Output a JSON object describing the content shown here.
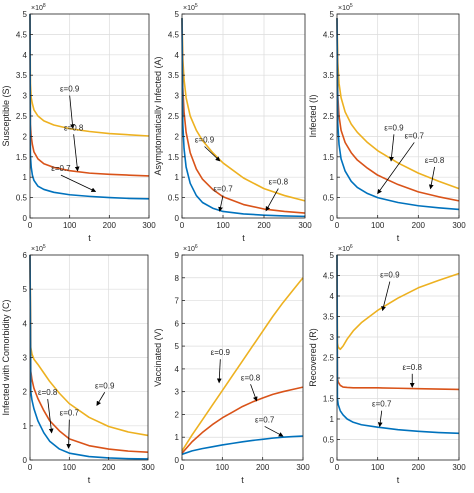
{
  "chart_data": [
    {
      "type": "line",
      "ylabel": "Susceptible (S)",
      "xlabel": "t",
      "exponent": "8",
      "xlim": [
        0,
        300
      ],
      "ylim": [
        0,
        5
      ],
      "xticks": [
        0,
        100,
        200,
        300
      ],
      "yticks": [
        0,
        0.5,
        1,
        1.5,
        2,
        2.5,
        3,
        3.5,
        4,
        4.5,
        5
      ],
      "grid": true,
      "series": [
        {
          "name": "ε=0.9",
          "color": "#edb120",
          "x": [
            0,
            1,
            3,
            6,
            10,
            20,
            35,
            60,
            100,
            150,
            200,
            250,
            300
          ],
          "y": [
            5.0,
            3.3,
            2.95,
            2.8,
            2.65,
            2.5,
            2.38,
            2.28,
            2.19,
            2.12,
            2.07,
            2.04,
            2.01
          ]
        },
        {
          "name": "ε=0.8",
          "color": "#d95319",
          "x": [
            0,
            1,
            3,
            6,
            10,
            20,
            35,
            60,
            100,
            150,
            200,
            250,
            300
          ],
          "y": [
            5.0,
            2.3,
            2.0,
            1.8,
            1.62,
            1.45,
            1.33,
            1.24,
            1.16,
            1.1,
            1.07,
            1.05,
            1.03
          ]
        },
        {
          "name": "ε=0.7",
          "color": "#0072bd",
          "x": [
            0,
            1,
            3,
            6,
            10,
            20,
            35,
            60,
            100,
            150,
            200,
            250,
            300
          ],
          "y": [
            5.0,
            1.55,
            1.25,
            1.05,
            0.92,
            0.78,
            0.7,
            0.63,
            0.57,
            0.53,
            0.5,
            0.48,
            0.47
          ]
        }
      ],
      "annotations": [
        {
          "text": "ε=0.9",
          "series": 0,
          "x": 100,
          "y": 3.1,
          "tx": 108,
          "ty": 2.2
        },
        {
          "text": "ε=0.8",
          "series": 1,
          "x": 110,
          "y": 2.15,
          "tx": 120,
          "ty": 1.16
        },
        {
          "text": "ε=0.7",
          "series": 2,
          "x": 78,
          "y": 1.15,
          "tx": 165,
          "ty": 0.65
        }
      ]
    },
    {
      "type": "line",
      "ylabel": "Asymptomatically Infected (A)",
      "xlabel": "t",
      "exponent": "5",
      "xlim": [
        0,
        300
      ],
      "ylim": [
        0,
        5
      ],
      "xticks": [
        0,
        100,
        200,
        300
      ],
      "yticks": [
        0,
        0.5,
        1,
        1.5,
        2,
        2.5,
        3,
        3.5,
        4,
        4.5,
        5
      ],
      "grid": true,
      "series": [
        {
          "name": "ε=0.9",
          "color": "#edb120",
          "x": [
            0,
            2,
            5,
            10,
            20,
            35,
            50,
            75,
            100,
            150,
            200,
            250,
            300
          ],
          "y": [
            4.9,
            3.9,
            3.4,
            2.95,
            2.5,
            2.15,
            1.9,
            1.6,
            1.35,
            0.98,
            0.72,
            0.55,
            0.42
          ]
        },
        {
          "name": "ε=0.8",
          "color": "#d95319",
          "x": [
            0,
            2,
            5,
            10,
            20,
            35,
            50,
            75,
            100,
            150,
            200,
            250,
            300
          ],
          "y": [
            4.9,
            3.2,
            2.6,
            2.1,
            1.6,
            1.2,
            0.95,
            0.7,
            0.52,
            0.33,
            0.22,
            0.16,
            0.12
          ]
        },
        {
          "name": "ε=0.7",
          "color": "#0072bd",
          "x": [
            0,
            2,
            5,
            10,
            20,
            35,
            50,
            75,
            100,
            150,
            200,
            250,
            300
          ],
          "y": [
            4.9,
            2.3,
            1.7,
            1.25,
            0.85,
            0.55,
            0.38,
            0.24,
            0.16,
            0.1,
            0.07,
            0.05,
            0.04
          ]
        }
      ],
      "annotations": [
        {
          "text": "ε=0.9",
          "series": 0,
          "x": 55,
          "y": 1.85,
          "tx": 92,
          "ty": 1.4
        },
        {
          "text": "ε=0.8",
          "series": 1,
          "x": 235,
          "y": 0.82,
          "tx": 205,
          "ty": 0.18
        },
        {
          "text": "ε=0.7",
          "series": 2,
          "x": 100,
          "y": 0.65,
          "tx": 92,
          "ty": 0.17
        }
      ]
    },
    {
      "type": "line",
      "ylabel": "Infected (I)",
      "xlabel": "t",
      "exponent": "5",
      "xlim": [
        0,
        300
      ],
      "ylim": [
        0,
        5
      ],
      "xticks": [
        0,
        100,
        200,
        300
      ],
      "yticks": [
        0,
        0.5,
        1,
        1.5,
        2,
        2.5,
        3,
        3.5,
        4,
        4.5,
        5
      ],
      "grid": true,
      "series": [
        {
          "name": "ε=0.9",
          "color": "#edb120",
          "x": [
            0,
            2,
            5,
            10,
            20,
            35,
            50,
            75,
            100,
            150,
            200,
            250,
            300
          ],
          "y": [
            4.9,
            3.8,
            3.3,
            2.95,
            2.6,
            2.3,
            2.1,
            1.85,
            1.65,
            1.35,
            1.1,
            0.9,
            0.72
          ]
        },
        {
          "name": "ε=0.8",
          "color": "#d95319",
          "x": [
            0,
            2,
            5,
            10,
            20,
            35,
            50,
            75,
            100,
            150,
            200,
            250,
            300
          ],
          "y": [
            4.9,
            3.0,
            2.5,
            2.15,
            1.85,
            1.6,
            1.42,
            1.22,
            1.05,
            0.82,
            0.64,
            0.52,
            0.42
          ]
        },
        {
          "name": "ε=0.7",
          "color": "#0072bd",
          "x": [
            0,
            2,
            5,
            10,
            20,
            35,
            50,
            75,
            100,
            150,
            200,
            250,
            300
          ],
          "y": [
            4.9,
            2.3,
            1.8,
            1.45,
            1.15,
            0.9,
            0.75,
            0.6,
            0.5,
            0.38,
            0.3,
            0.25,
            0.21
          ]
        }
      ],
      "annotations": [
        {
          "text": "ε=0.9",
          "series": 0,
          "x": 140,
          "y": 2.15,
          "tx": 133,
          "ty": 1.4
        },
        {
          "text": "ε=0.7",
          "series": 2,
          "x": 190,
          "y": 1.95,
          "tx": 100,
          "ty": 0.6
        },
        {
          "text": "ε=0.8",
          "series": 1,
          "x": 240,
          "y": 1.35,
          "tx": 230,
          "ty": 0.72
        }
      ]
    },
    {
      "type": "line",
      "ylabel": "Infected with Comorbidity (C)",
      "xlabel": "t",
      "exponent": "5",
      "xlim": [
        0,
        300
      ],
      "ylim": [
        0,
        6
      ],
      "xticks": [
        0,
        100,
        200,
        300
      ],
      "yticks": [
        0,
        1,
        2,
        3,
        4,
        5,
        6
      ],
      "grid": true,
      "series": [
        {
          "name": "ε=0.9",
          "color": "#edb120",
          "x": [
            0,
            2,
            5,
            10,
            20,
            35,
            50,
            75,
            100,
            150,
            200,
            250,
            300
          ],
          "y": [
            6.0,
            3.3,
            3.1,
            2.95,
            2.8,
            2.55,
            2.3,
            1.95,
            1.65,
            1.25,
            0.98,
            0.82,
            0.72
          ]
        },
        {
          "name": "ε=0.8",
          "color": "#d95319",
          "x": [
            0,
            2,
            5,
            10,
            20,
            35,
            50,
            75,
            100,
            150,
            200,
            250,
            300
          ],
          "y": [
            6.0,
            2.6,
            2.35,
            2.1,
            1.8,
            1.45,
            1.15,
            0.85,
            0.62,
            0.42,
            0.32,
            0.26,
            0.23
          ]
        },
        {
          "name": "ε=0.7",
          "color": "#0072bd",
          "x": [
            0,
            2,
            5,
            10,
            20,
            35,
            50,
            75,
            100,
            150,
            200,
            250,
            300
          ],
          "y": [
            6.0,
            2.0,
            1.75,
            1.5,
            1.15,
            0.8,
            0.55,
            0.32,
            0.2,
            0.1,
            0.06,
            0.04,
            0.03
          ]
        }
      ],
      "annotations": [
        {
          "text": "ε=0.9",
          "series": 0,
          "x": 190,
          "y": 2.1,
          "tx": 170,
          "ty": 1.6
        },
        {
          "text": "ε=0.8",
          "series": 1,
          "x": 45,
          "y": 1.9,
          "tx": 55,
          "ty": 0.8
        },
        {
          "text": "ε=0.7",
          "series": 2,
          "x": 100,
          "y": 1.3,
          "tx": 98,
          "ty": 0.35
        }
      ]
    },
    {
      "type": "line",
      "ylabel": "Vaccinated (V)",
      "xlabel": "t",
      "exponent": "6",
      "xlim": [
        0,
        300
      ],
      "ylim": [
        0,
        9
      ],
      "xticks": [
        0,
        100,
        200,
        300
      ],
      "yticks": [
        0,
        1,
        2,
        3,
        4,
        5,
        6,
        7,
        8,
        9
      ],
      "grid": true,
      "series": [
        {
          "name": "ε=0.9",
          "color": "#edb120",
          "x": [
            0,
            25,
            50,
            75,
            100,
            125,
            150,
            175,
            200,
            225,
            250,
            275,
            300
          ],
          "y": [
            0.4,
            1.1,
            1.75,
            2.4,
            3.05,
            3.7,
            4.35,
            5.0,
            5.65,
            6.3,
            6.9,
            7.45,
            8.0
          ]
        },
        {
          "name": "ε=0.8",
          "color": "#d95319",
          "x": [
            0,
            25,
            50,
            75,
            100,
            125,
            150,
            175,
            200,
            225,
            250,
            275,
            300
          ],
          "y": [
            0.3,
            0.8,
            1.2,
            1.55,
            1.85,
            2.1,
            2.35,
            2.55,
            2.72,
            2.88,
            3.0,
            3.1,
            3.2
          ]
        },
        {
          "name": "ε=0.7",
          "color": "#0072bd",
          "x": [
            0,
            25,
            50,
            75,
            100,
            125,
            150,
            175,
            200,
            225,
            250,
            275,
            300
          ],
          "y": [
            0.25,
            0.4,
            0.5,
            0.58,
            0.66,
            0.73,
            0.8,
            0.86,
            0.91,
            0.96,
            1.0,
            1.03,
            1.05
          ]
        }
      ],
      "annotations": [
        {
          "text": "ε=0.9",
          "series": 0,
          "x": 95,
          "y": 4.6,
          "tx": 92,
          "ty": 3.4
        },
        {
          "text": "ε=0.8",
          "series": 1,
          "x": 170,
          "y": 3.5,
          "tx": 185,
          "ty": 2.6
        },
        {
          "text": "ε=0.7",
          "series": 2,
          "x": 205,
          "y": 1.65,
          "tx": 250,
          "ty": 1.05
        }
      ]
    },
    {
      "type": "line",
      "ylabel": "Recovered (R)",
      "xlabel": "t",
      "exponent": "6",
      "xlim": [
        0,
        300
      ],
      "ylim": [
        0,
        5
      ],
      "xticks": [
        0,
        100,
        200,
        300
      ],
      "yticks": [
        0,
        0.5,
        1,
        1.5,
        2,
        2.5,
        3,
        3.5,
        4,
        4.5,
        5
      ],
      "grid": true,
      "series": [
        {
          "name": "ε=0.9",
          "color": "#edb120",
          "x": [
            0,
            1,
            3,
            8,
            15,
            25,
            40,
            60,
            80,
            100,
            150,
            200,
            250,
            300
          ],
          "y": [
            5.0,
            2.85,
            2.75,
            2.7,
            2.78,
            2.95,
            3.15,
            3.35,
            3.5,
            3.65,
            3.95,
            4.2,
            4.38,
            4.55
          ]
        },
        {
          "name": "ε=0.8",
          "color": "#d95319",
          "x": [
            0,
            1,
            3,
            8,
            15,
            25,
            40,
            60,
            100,
            150,
            200,
            250,
            300
          ],
          "y": [
            5.0,
            2.0,
            1.9,
            1.82,
            1.78,
            1.77,
            1.76,
            1.76,
            1.76,
            1.75,
            1.74,
            1.73,
            1.72
          ]
        },
        {
          "name": "ε=0.7",
          "color": "#0072bd",
          "x": [
            0,
            1,
            3,
            8,
            15,
            25,
            40,
            60,
            100,
            150,
            200,
            250,
            300
          ],
          "y": [
            5.0,
            1.5,
            1.35,
            1.2,
            1.1,
            1.0,
            0.92,
            0.86,
            0.8,
            0.74,
            0.7,
            0.67,
            0.65
          ]
        }
      ],
      "annotations": [
        {
          "text": "ε=0.9",
          "series": 0,
          "x": 130,
          "y": 4.45,
          "tx": 112,
          "ty": 3.65
        },
        {
          "text": "ε=0.8",
          "series": 1,
          "x": 185,
          "y": 2.2,
          "tx": 185,
          "ty": 1.78
        },
        {
          "text": "ε=0.7",
          "series": 2,
          "x": 110,
          "y": 1.3,
          "tx": 105,
          "ty": 0.82
        }
      ]
    }
  ]
}
